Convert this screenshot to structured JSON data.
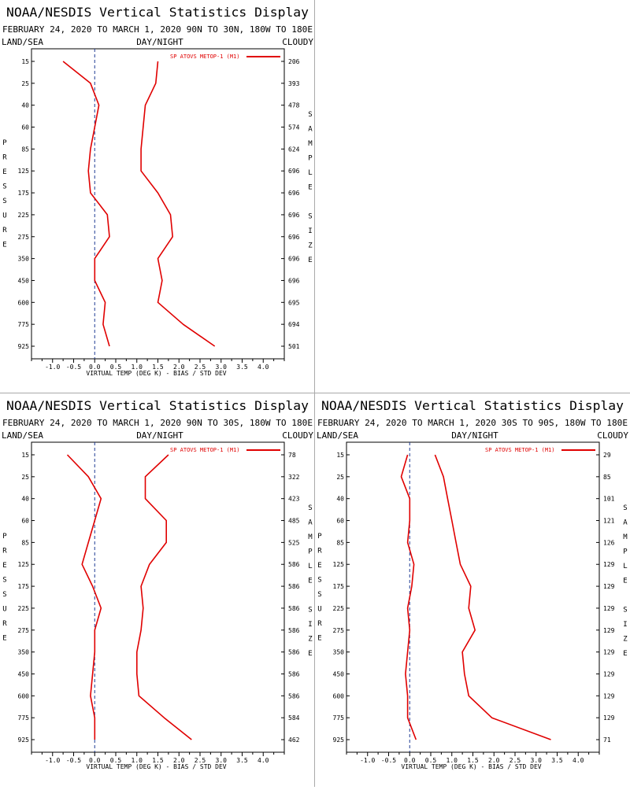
{
  "layout_labels": {
    "left_corner": "LAND/SEA",
    "center": "DAY/NIGHT",
    "right_corner": "CLOUDY",
    "left_axis_title": "PRESSURE",
    "right_axis_title": "SAMPLE SIZE",
    "x_axis_label": "VIRTUAL TEMP (DEG K) - BIAS / STD DEV"
  },
  "colors": {
    "series": "#e00000",
    "frame": "#000000",
    "zero_line": "#1f3a93",
    "divider": "#a9a9a9"
  },
  "chart_data": [
    {
      "type": "line",
      "title": "NOAA/NESDIS Vertical Statistics Display",
      "subtitle": "FEBRUARY 24, 2020 TO MARCH 1, 2020 90N TO 30N, 180W TO 180E",
      "xlabel": "VIRTUAL TEMP (DEG K) - BIAS / STD DEV",
      "ylabel": "PRESSURE",
      "y2label": "SAMPLE SIZE",
      "xlim": [
        -1.5,
        4.5
      ],
      "xticks": [
        -1.0,
        -0.5,
        0.0,
        0.5,
        1.0,
        1.5,
        2.0,
        2.5,
        3.0,
        3.5,
        4.0
      ],
      "xtick_labels": [
        "-1.0",
        "-0.5",
        "0.0",
        "0.5",
        "1.0",
        "1.5",
        "2.0",
        "2.5",
        "3.0",
        "3.5",
        "4.0"
      ],
      "pressure_levels": [
        "15",
        "25",
        "40",
        "60",
        "85",
        "125",
        "175",
        "225",
        "275",
        "350",
        "450",
        "600",
        "775",
        "925"
      ],
      "sample_size": [
        "206",
        "393",
        "478",
        "574",
        "624",
        "696",
        "696",
        "696",
        "696",
        "696",
        "696",
        "695",
        "694",
        "501"
      ],
      "legend": "SP ATOVS METOP-1 (M1)",
      "legend_position": "top-right",
      "series": [
        {
          "name": "bias",
          "values": [
            -0.75,
            -0.1,
            0.1,
            0.0,
            -0.1,
            -0.15,
            -0.1,
            0.3,
            0.35,
            0.0,
            0.0,
            0.25,
            0.2,
            0.35
          ]
        },
        {
          "name": "std_dev",
          "values": [
            1.5,
            1.45,
            1.2,
            1.15,
            1.1,
            1.1,
            1.5,
            1.8,
            1.85,
            1.5,
            1.6,
            1.5,
            2.1,
            2.85
          ]
        }
      ]
    },
    {
      "type": "line",
      "title": "NOAA/NESDIS Vertical Statistics Display",
      "subtitle": "FEBRUARY 24, 2020 TO MARCH 1, 2020 90N TO 30S, 180W TO 180E",
      "xlabel": "VIRTUAL TEMP (DEG K) - BIAS / STD DEV",
      "ylabel": "PRESSURE",
      "y2label": "SAMPLE SIZE",
      "xlim": [
        -1.5,
        4.5
      ],
      "xticks": [
        -1.0,
        -0.5,
        0.0,
        0.5,
        1.0,
        1.5,
        2.0,
        2.5,
        3.0,
        3.5,
        4.0
      ],
      "xtick_labels": [
        "-1.0",
        "-0.5",
        "0.0",
        "0.5",
        "1.0",
        "1.5",
        "2.0",
        "2.5",
        "3.0",
        "3.5",
        "4.0"
      ],
      "pressure_levels": [
        "15",
        "25",
        "40",
        "60",
        "85",
        "125",
        "175",
        "225",
        "275",
        "350",
        "450",
        "600",
        "775",
        "925"
      ],
      "sample_size": [
        "78",
        "322",
        "423",
        "485",
        "525",
        "586",
        "586",
        "586",
        "586",
        "586",
        "586",
        "586",
        "584",
        "462"
      ],
      "legend": "SP ATOVS METOP-1 (M1)",
      "legend_position": "top-right",
      "series": [
        {
          "name": "bias",
          "values": [
            -0.65,
            -0.15,
            0.15,
            0.0,
            -0.15,
            -0.3,
            -0.05,
            0.15,
            0.0,
            0.0,
            -0.05,
            -0.1,
            0.0,
            0.0
          ]
        },
        {
          "name": "std_dev",
          "values": [
            1.75,
            1.2,
            1.2,
            1.7,
            1.7,
            1.3,
            1.1,
            1.15,
            1.1,
            1.0,
            1.0,
            1.05,
            1.65,
            2.3
          ]
        }
      ]
    },
    {
      "type": "line",
      "title": "NOAA/NESDIS Vertical Statistics Display",
      "subtitle": "FEBRUARY 24, 2020 TO MARCH 1, 2020 30S TO 90S, 180W TO 180E",
      "xlabel": "VIRTUAL TEMP (DEG K) - BIAS / STD DEV",
      "ylabel": "PRESSURE",
      "y2label": "SAMPLE SIZE",
      "xlim": [
        -1.5,
        4.5
      ],
      "xticks": [
        -1.0,
        -0.5,
        0.0,
        0.5,
        1.0,
        1.5,
        2.0,
        2.5,
        3.0,
        3.5,
        4.0
      ],
      "xtick_labels": [
        "-1.0",
        "-0.5",
        "0.0",
        "0.5",
        "1.0",
        "1.5",
        "2.0",
        "2.5",
        "3.0",
        "3.5",
        "4.0"
      ],
      "pressure_levels": [
        "15",
        "25",
        "40",
        "60",
        "85",
        "125",
        "175",
        "225",
        "275",
        "350",
        "450",
        "600",
        "775",
        "925"
      ],
      "sample_size": [
        "29",
        "85",
        "101",
        "121",
        "126",
        "129",
        "129",
        "129",
        "129",
        "129",
        "129",
        "129",
        "129",
        "71"
      ],
      "legend": "SP ATOVS METOP-1 (M1)",
      "legend_position": "top-right",
      "series": [
        {
          "name": "bias",
          "values": [
            -0.05,
            -0.2,
            0.0,
            0.0,
            -0.05,
            0.1,
            0.05,
            -0.05,
            0.0,
            -0.05,
            -0.1,
            -0.05,
            -0.05,
            0.15
          ]
        },
        {
          "name": "std_dev",
          "values": [
            0.6,
            0.8,
            0.9,
            1.0,
            1.1,
            1.2,
            1.45,
            1.4,
            1.55,
            1.25,
            1.3,
            1.4,
            1.95,
            3.35
          ]
        }
      ]
    }
  ]
}
